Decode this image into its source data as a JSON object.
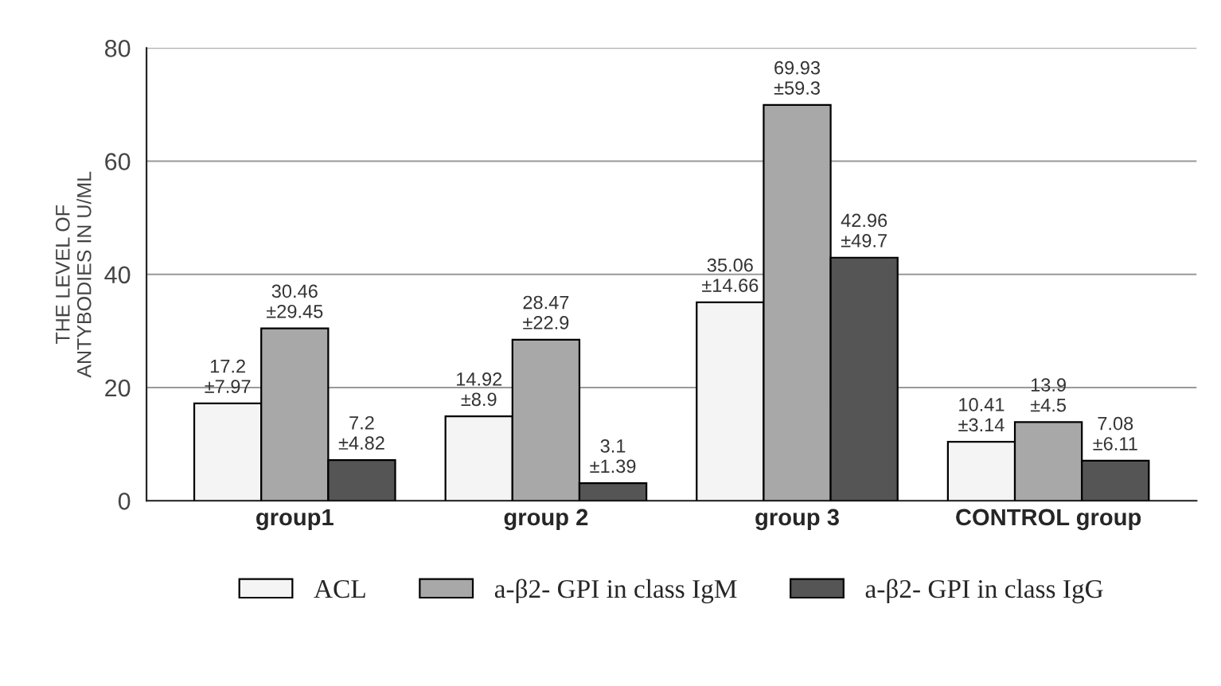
{
  "chart_data": {
    "type": "bar",
    "ylabel": "THE LEVEL OF\nANTYBODIES IN U/ML",
    "categories": [
      "group1",
      "group 2",
      "group 3",
      "CONTROL group"
    ],
    "series": [
      {
        "name": "ACL",
        "color": "#f4f4f4",
        "values": [
          17.2,
          14.92,
          35.06,
          10.41
        ],
        "value_labels": [
          "17.2\n±7.97",
          "14.92\n±8.9",
          "35.06\n±14.66",
          "10.41\n±3.14"
        ]
      },
      {
        "name": "a-β2- GPI in class IgM",
        "color": "#a8a8a8",
        "values": [
          30.46,
          28.47,
          69.93,
          13.9
        ],
        "value_labels": [
          "30.46\n±29.45",
          "28.47\n±22.9",
          "69.93\n±59.3",
          "13.9\n±4.5"
        ]
      },
      {
        "name": "a-β2- GPI in class IgG",
        "color": "#555555",
        "values": [
          7.2,
          3.1,
          42.96,
          7.08
        ],
        "value_labels": [
          "7.2\n±4.82",
          "3.1\n±1.39",
          "42.96\n±49.7",
          "7.08\n±6.11"
        ]
      }
    ],
    "ylim": [
      0,
      80
    ],
    "yticks": [
      0,
      20,
      40,
      60,
      80
    ],
    "grid": "y",
    "legend": "bottom"
  }
}
